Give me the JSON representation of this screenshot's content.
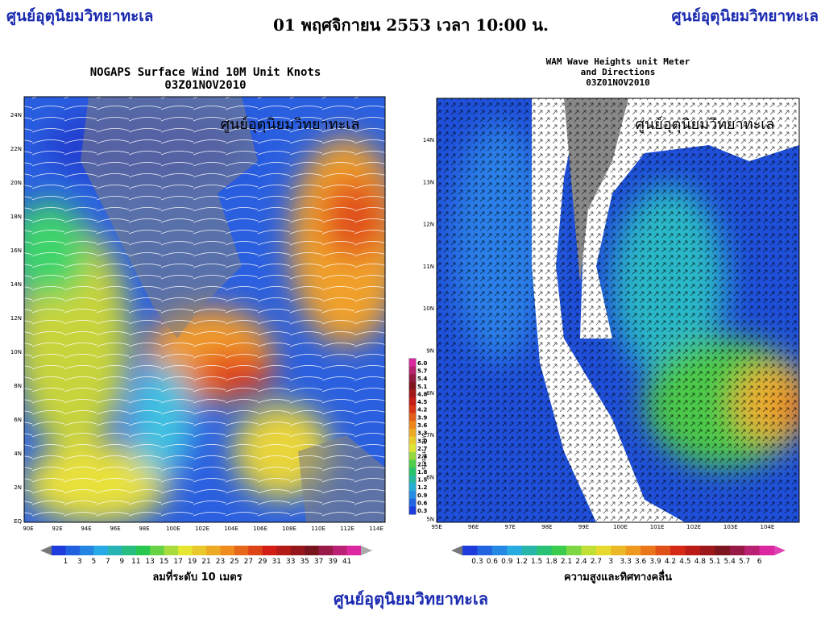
{
  "header": {
    "left": "ศูนย์อุตุนิยมวิทยาทะเล",
    "date": "01 พฤศจิกายน 2553 เวลา 10:00 น.",
    "right": "ศูนย์อุตุนิยมวิทยาทะเล"
  },
  "wind_map": {
    "title": "NOGAPS Surface Wind 10M Unit Knots",
    "time": "03Z01NOV2010",
    "watermark": "ศูนย์อุตุนิยมวิทยาทะเล",
    "lat_labels": [
      "24N",
      "22N",
      "20N",
      "18N",
      "16N",
      "14N",
      "12N",
      "10N",
      "8N",
      "6N",
      "4N",
      "2N",
      "EQ"
    ],
    "lon_labels": [
      "90E",
      "92E",
      "94E",
      "96E",
      "98E",
      "100E",
      "102E",
      "104E",
      "106E",
      "108E",
      "110E",
      "112E",
      "114E"
    ],
    "colorbar": [
      "1",
      "3",
      "5",
      "7",
      "9",
      "11",
      "13",
      "15",
      "17",
      "19",
      "21",
      "23",
      "25",
      "27",
      "29",
      "31",
      "33",
      "35",
      "37",
      "39",
      "41"
    ],
    "caption": "ลมที่ระดับ 10 เมตร"
  },
  "wave_scale": {
    "labels": [
      "6.0",
      "5.7",
      "5.4",
      "5.1",
      "4.8",
      "4.5",
      "4.2",
      "3.9",
      "3.6",
      "3.3",
      "3.0",
      "2.7",
      "2.4",
      "2.1",
      "1.8",
      "1.5",
      "1.2",
      "0.9",
      "0.6",
      "0.3"
    ],
    "unit": "Unit : meters"
  },
  "wave_map": {
    "title": "WAM Wave Heights unit Meter",
    "title2": "and Directions",
    "time": "03Z01NOV2010",
    "watermark": "ศูนย์อุตุนิยมวิทยาทะเล",
    "lat_labels": [
      "14N",
      "13N",
      "12N",
      "11N",
      "10N",
      "9N",
      "8N",
      "7N",
      "6N",
      "5N"
    ],
    "lon_labels": [
      "95E",
      "96E",
      "97E",
      "98E",
      "99E",
      "100E",
      "101E",
      "102E",
      "103E",
      "104E"
    ],
    "colorbar": [
      "0.3",
      "0.6",
      "0.9",
      "1.2",
      "1.5",
      "1.8",
      "2.1",
      "2.4",
      "2.7",
      "3",
      "3.3",
      "3.6",
      "3.9",
      "4.2",
      "4.5",
      "4.8",
      "5.1",
      "5.4",
      "5.7",
      "6"
    ],
    "caption": "ความสูงและทิศทางคลื่น"
  },
  "footer": "ศูนย์อุตุนิยมวิทยาทะเล"
}
